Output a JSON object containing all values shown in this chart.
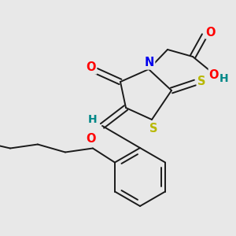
{
  "background_color": "#e8e8e8",
  "bond_color": "#1a1a1a",
  "bond_width": 1.4,
  "atom_colors": {
    "O": "#ff0000",
    "N": "#0000ee",
    "S_ring": "#b8b800",
    "S_exo": "#b8b800",
    "H": "#008888",
    "C": "#1a1a1a"
  },
  "font_size": 10.5
}
